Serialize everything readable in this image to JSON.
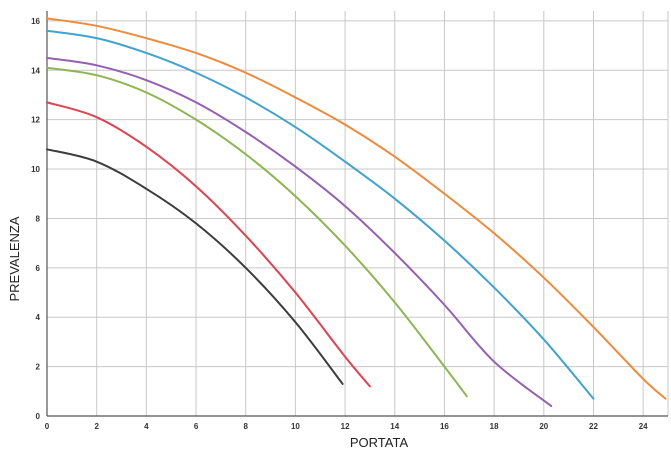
{
  "chart_data": {
    "type": "line",
    "xlabel": "PORTATA",
    "ylabel": "PREVALENZA",
    "xlim": [
      0,
      25
    ],
    "ylim": [
      0,
      16.4
    ],
    "x_ticks": [
      0,
      2,
      4,
      6,
      8,
      10,
      12,
      14,
      16,
      18,
      20,
      22,
      24
    ],
    "y_ticks": [
      0,
      2,
      4,
      6,
      8,
      10,
      12,
      14,
      16
    ],
    "grid": true,
    "colors": {
      "grid": "#c8c8c8",
      "axis": "#555555",
      "curve_1": "#3c3c3c",
      "curve_2": "#e0424f",
      "curve_3": "#8db652",
      "curve_4": "#9560b0",
      "curve_5": "#3fa3d0",
      "curve_6": "#f08a3a"
    },
    "series": [
      {
        "color_key": "curve_1",
        "x": [
          0,
          2,
          4,
          6,
          8,
          10,
          11.9
        ],
        "y": [
          10.8,
          10.3,
          9.2,
          7.8,
          6.0,
          3.8,
          1.3
        ]
      },
      {
        "color_key": "curve_2",
        "x": [
          0,
          2,
          4,
          6,
          8,
          10,
          12,
          13
        ],
        "y": [
          12.7,
          12.1,
          10.9,
          9.3,
          7.3,
          5.0,
          2.4,
          1.2
        ]
      },
      {
        "color_key": "curve_3",
        "x": [
          0,
          2,
          4,
          6,
          8,
          10,
          12,
          14,
          16,
          16.9
        ],
        "y": [
          14.1,
          13.8,
          13.1,
          12.0,
          10.6,
          8.9,
          6.9,
          4.6,
          2.0,
          0.8
        ]
      },
      {
        "color_key": "curve_4",
        "x": [
          0,
          2,
          4,
          6,
          8,
          10,
          12,
          14,
          16,
          18,
          20.3
        ],
        "y": [
          14.5,
          14.2,
          13.6,
          12.7,
          11.5,
          10.1,
          8.5,
          6.6,
          4.5,
          2.2,
          0.4
        ]
      },
      {
        "color_key": "curve_5",
        "x": [
          0,
          2,
          4,
          6,
          8,
          10,
          12,
          14,
          16,
          18,
          20,
          22
        ],
        "y": [
          15.6,
          15.3,
          14.7,
          13.9,
          12.9,
          11.7,
          10.3,
          8.8,
          7.1,
          5.2,
          3.1,
          0.7
        ]
      },
      {
        "color_key": "curve_6",
        "x": [
          0,
          2,
          4,
          6,
          8,
          10,
          12,
          14,
          16,
          18,
          20,
          22,
          24,
          24.9
        ],
        "y": [
          16.1,
          15.8,
          15.3,
          14.7,
          13.9,
          12.9,
          11.8,
          10.5,
          9.0,
          7.4,
          5.6,
          3.6,
          1.5,
          0.7
        ]
      }
    ]
  }
}
